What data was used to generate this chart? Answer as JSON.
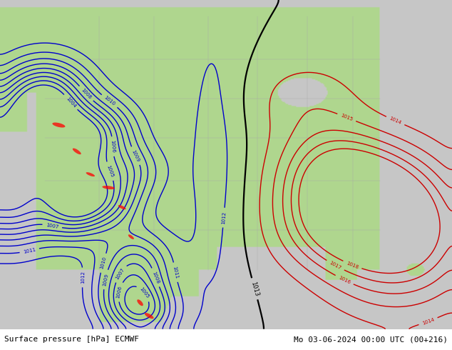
{
  "title_left": "Surface pressure [hPa] ECMWF",
  "title_right": "Mo 03-06-2024 00:00 UTC (00+216)",
  "fig_width": 6.34,
  "fig_height": 4.9,
  "dpi": 100,
  "font_size_bottom": 8,
  "land_color": [
    0.69,
    0.84,
    0.56
  ],
  "ocean_color": [
    0.78,
    0.78,
    0.78
  ],
  "contour_levels_blue": [
    1004,
    1005,
    1006,
    1007,
    1008,
    1009,
    1010,
    1011,
    1012
  ],
  "contour_levels_black": [
    1013
  ],
  "contour_levels_red": [
    1014,
    1015,
    1016,
    1017,
    1018
  ],
  "contour_color_blue": "#0000cc",
  "contour_color_black": "#000000",
  "contour_color_red": "#cc0000",
  "label_fontsize_blue": 5,
  "label_fontsize_black": 6,
  "label_fontsize_red": 5,
  "lw_blue": 1.0,
  "lw_black": 1.6,
  "lw_red": 1.0
}
